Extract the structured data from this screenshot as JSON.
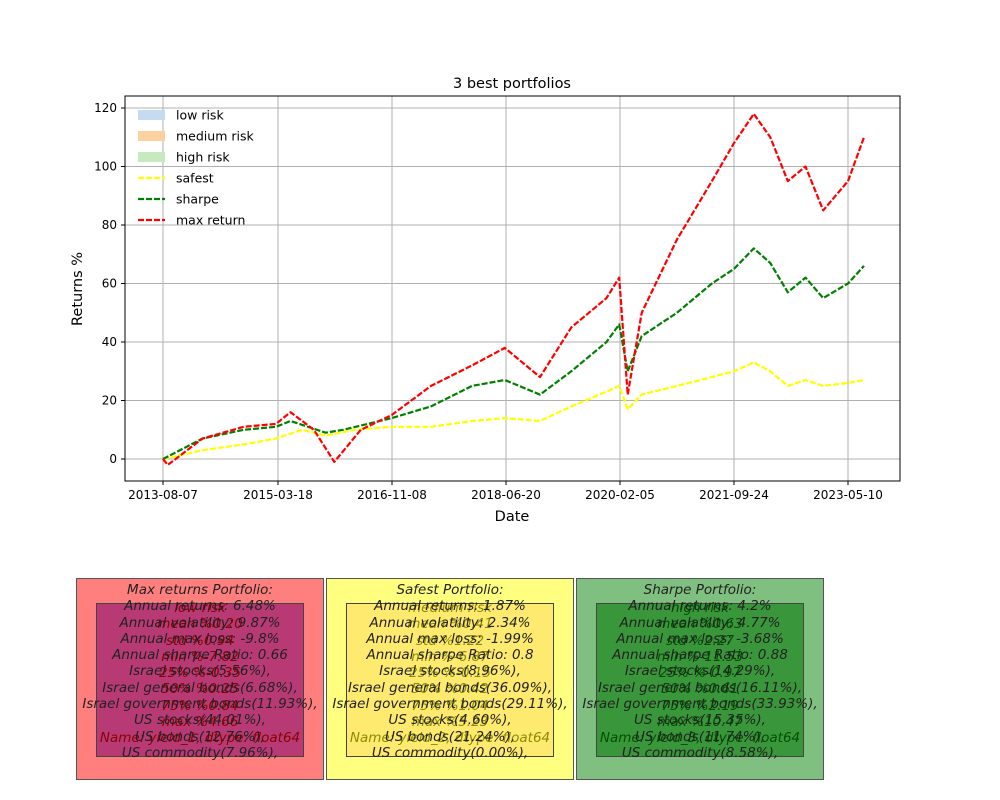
{
  "chart_data": {
    "type": "line",
    "title": "3 best portfolios",
    "xlabel": "Date",
    "ylabel": "Returns %",
    "xticks": [
      "2013-08-07",
      "2015-03-18",
      "2016-11-08",
      "2018-06-20",
      "2020-02-05",
      "2021-09-24",
      "2023-05-10"
    ],
    "yticks": [
      "0",
      "20",
      "40",
      "60",
      "80",
      "100",
      "120"
    ],
    "ylim": [
      -7,
      124
    ],
    "grid": true,
    "legend_position": "top-left",
    "legend": [
      {
        "label": "low risk",
        "kind": "patch",
        "color": "#c6dbef"
      },
      {
        "label": "medium risk",
        "kind": "patch",
        "color": "#fdd0a2"
      },
      {
        "label": "high risk",
        "kind": "patch",
        "color": "#c7e9c0"
      },
      {
        "label": "safest",
        "kind": "dash",
        "color": "#ffff00"
      },
      {
        "label": "sharpe",
        "kind": "dash",
        "color": "#008000"
      },
      {
        "label": "max return",
        "kind": "dash",
        "color": "#ff0000"
      }
    ],
    "series": [
      {
        "name": "safest",
        "color": "#ffff00",
        "points": [
          [
            "2013-08-07",
            0
          ],
          [
            "2014-03-01",
            3
          ],
          [
            "2014-10-01",
            5
          ],
          [
            "2015-03-18",
            7
          ],
          [
            "2015-08-01",
            10
          ],
          [
            "2015-12-01",
            8
          ],
          [
            "2016-05-01",
            10
          ],
          [
            "2016-11-08",
            11
          ],
          [
            "2017-06-01",
            11
          ],
          [
            "2018-01-01",
            13
          ],
          [
            "2018-06-20",
            14
          ],
          [
            "2018-12-20",
            13
          ],
          [
            "2019-06-01",
            18
          ],
          [
            "2019-12-01",
            23
          ],
          [
            "2020-02-05",
            25
          ],
          [
            "2020-03-20",
            17
          ],
          [
            "2020-06-01",
            22
          ],
          [
            "2020-12-01",
            25
          ],
          [
            "2021-06-01",
            28
          ],
          [
            "2021-09-24",
            30
          ],
          [
            "2022-01-05",
            33
          ],
          [
            "2022-04-01",
            30
          ],
          [
            "2022-07-01",
            25
          ],
          [
            "2022-10-01",
            27
          ],
          [
            "2023-01-01",
            25
          ],
          [
            "2023-05-10",
            26
          ],
          [
            "2023-08-01",
            27
          ]
        ]
      },
      {
        "name": "sharpe",
        "color": "#008000",
        "points": [
          [
            "2013-08-07",
            0
          ],
          [
            "2014-03-01",
            7
          ],
          [
            "2014-10-01",
            10
          ],
          [
            "2015-03-18",
            11
          ],
          [
            "2015-06-01",
            13
          ],
          [
            "2015-12-01",
            9
          ],
          [
            "2016-03-01",
            10
          ],
          [
            "2016-11-08",
            14
          ],
          [
            "2017-06-01",
            18
          ],
          [
            "2018-01-01",
            25
          ],
          [
            "2018-06-20",
            27
          ],
          [
            "2018-12-20",
            22
          ],
          [
            "2019-06-01",
            30
          ],
          [
            "2019-12-01",
            40
          ],
          [
            "2020-02-05",
            46
          ],
          [
            "2020-03-20",
            30
          ],
          [
            "2020-06-01",
            42
          ],
          [
            "2020-12-01",
            50
          ],
          [
            "2021-06-01",
            60
          ],
          [
            "2021-09-24",
            65
          ],
          [
            "2022-01-05",
            72
          ],
          [
            "2022-04-01",
            67
          ],
          [
            "2022-07-01",
            57
          ],
          [
            "2022-10-01",
            62
          ],
          [
            "2023-01-01",
            55
          ],
          [
            "2023-05-10",
            60
          ],
          [
            "2023-08-01",
            66
          ]
        ]
      },
      {
        "name": "max return",
        "color": "#ff0000",
        "points": [
          [
            "2013-08-07",
            0
          ],
          [
            "2013-09-01",
            -2
          ],
          [
            "2014-03-01",
            7
          ],
          [
            "2014-10-01",
            11
          ],
          [
            "2015-03-18",
            12
          ],
          [
            "2015-06-01",
            16
          ],
          [
            "2015-10-01",
            10
          ],
          [
            "2016-01-15",
            -1
          ],
          [
            "2016-06-01",
            10
          ],
          [
            "2016-11-08",
            15
          ],
          [
            "2017-06-01",
            25
          ],
          [
            "2018-01-01",
            32
          ],
          [
            "2018-06-20",
            38
          ],
          [
            "2018-12-20",
            28
          ],
          [
            "2019-06-01",
            45
          ],
          [
            "2019-12-01",
            55
          ],
          [
            "2020-02-05",
            62
          ],
          [
            "2020-03-20",
            22
          ],
          [
            "2020-06-01",
            50
          ],
          [
            "2020-12-01",
            75
          ],
          [
            "2021-06-01",
            95
          ],
          [
            "2021-09-24",
            108
          ],
          [
            "2022-01-05",
            118
          ],
          [
            "2022-04-01",
            110
          ],
          [
            "2022-07-01",
            95
          ],
          [
            "2022-10-01",
            100
          ],
          [
            "2023-01-01",
            85
          ],
          [
            "2023-05-10",
            95
          ],
          [
            "2023-08-01",
            110
          ]
        ]
      }
    ]
  },
  "panels": [
    {
      "title": "Max returns Portfolio:",
      "stats": [
        "Annual returns: 6.48%",
        "Annual volatility: 9.87%",
        "Annual max loss: -9.8%",
        "Annual sharpe Ratio: 0.66"
      ],
      "allocation": [
        "Israel stocks(5.56%),",
        "Israel general bonds(6.68%),",
        "Israel government bonds(11.93%),",
        "US stocks(44.01%),",
        "US bonds(12.76%),",
        "US commodity(7.96%),"
      ],
      "inner": [
        "low risk",
        "mean   %0.20",
        "std   %0.94",
        "min   %-7.82",
        "25%   %-0.35",
        "50%   %0.25",
        "75%   %0.84",
        "max   %4.66",
        "Name: yield_1, dtype: float64"
      ],
      "outer_color": "#ff7f7f",
      "inner_color": "#b73a75",
      "inner_text_color": "#8b0000"
    },
    {
      "title": "Safest Portfolio:",
      "stats": [
        "Annual returns: 1.87%",
        "Annual volatility: 2.34%",
        "Annual max loss: -1.99%",
        "Annual sharpe Ratio: 0.8"
      ],
      "allocation": [
        "Israel stocks(8.96%),",
        "Israel general bonds(36.09%),",
        "Israel government bonds(29.11%),",
        "US stocks(4.60%),",
        "US bonds(21.24%),",
        "US commodity(0.00%),"
      ],
      "inner": [
        "medium risk",
        "mean   %0.41",
        "std   %1.22",
        "min   %-6.87",
        "25%   %-0.15",
        "50%   %0.42",
        "75%   %1.04",
        "max   %5.23",
        "Name: yield_2, dtype: float64"
      ],
      "outer_color": "#ffff7f",
      "inner_color": "#ffea70",
      "inner_text_color": "#8b8b00"
    },
    {
      "title": "Sharpe  Portfolio:",
      "stats": [
        "Annual returns: 4.2%",
        "Annual volatility: 4.77%",
        "Annual max loss: -3.68%",
        "Annual sharpe Ratio: 0.88"
      ],
      "allocation": [
        "Israel stocks(14.29%),",
        "Israel general bonds(16.11%),",
        "Israel government bonds(33.93%),",
        "US stocks(15.35%),",
        "US bonds(11.74%),",
        "US commodity(8.58%),"
      ],
      "inner": [
        "high risk",
        "mean   %0.63",
        "std   %2.27",
        "min   %-11.53",
        "25%   %-0.97",
        "50%   %0.61",
        "75%   %2.19",
        "max   %10.47",
        "Name: yield_3, dtype: float64"
      ],
      "outer_color": "#7fbf7f",
      "inner_color": "#3a963a",
      "inner_text_color": "#005000"
    }
  ]
}
